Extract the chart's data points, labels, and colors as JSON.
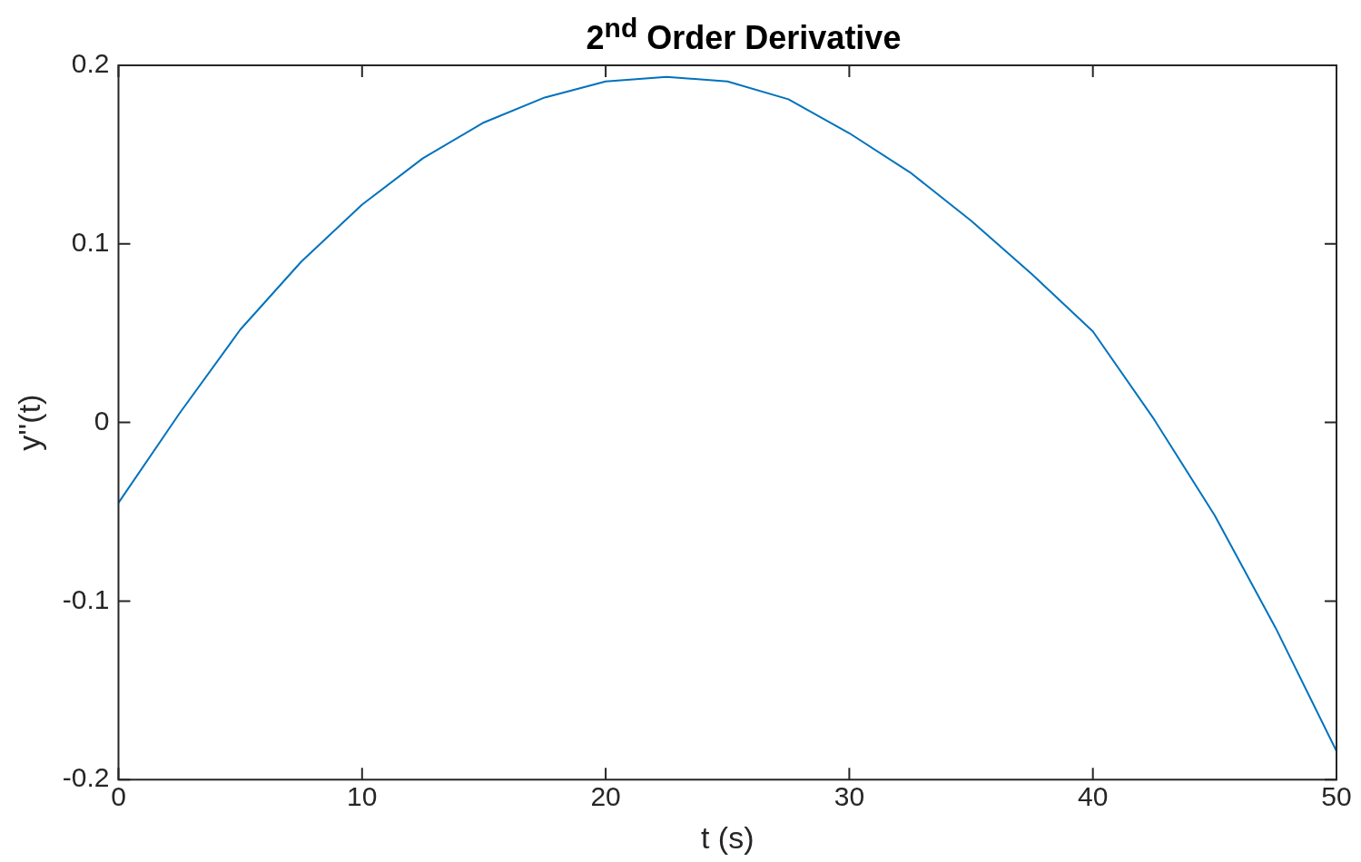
{
  "chart_data": {
    "type": "line",
    "title": "2$^{nd}$ Order Derivative",
    "xlabel": "t (s)",
    "ylabel": "y''(t)",
    "x": [
      0,
      2.5,
      5,
      7.5,
      10,
      12.5,
      15,
      17.5,
      20,
      22.5,
      25,
      27.5,
      30,
      32.5,
      35,
      37.5,
      40,
      42.5,
      45,
      47.5,
      50
    ],
    "series": [
      {
        "color": "#0072bd",
        "values": [
          -0.045,
          0.005,
          0.052,
          0.09,
          0.122,
          0.148,
          0.168,
          0.182,
          0.191,
          0.1935,
          0.191,
          0.181,
          0.162,
          0.14,
          0.113,
          0.083,
          0.051,
          0.002,
          -0.052,
          -0.115,
          -0.184
        ]
      }
    ],
    "xlim": [
      0,
      50
    ],
    "xticks": [
      0,
      10,
      20,
      30,
      40,
      50
    ],
    "ylim": [
      -0.2,
      0.2
    ],
    "yticks": [
      -0.2,
      -0.1,
      0,
      0.1,
      0.2
    ],
    "grid": false,
    "legend": false,
    "marker": "none",
    "line_style": "solid"
  }
}
